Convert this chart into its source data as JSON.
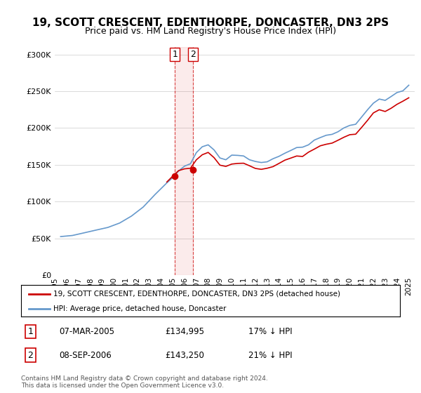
{
  "title": "19, SCOTT CRESCENT, EDENTHORPE, DONCASTER, DN3 2PS",
  "subtitle": "Price paid vs. HM Land Registry's House Price Index (HPI)",
  "legend_line1": "19, SCOTT CRESCENT, EDENTHORPE, DONCASTER, DN3 2PS (detached house)",
  "legend_line2": "HPI: Average price, detached house, Doncaster",
  "sale1_label": "1",
  "sale1_date": "07-MAR-2005",
  "sale1_price": "£134,995",
  "sale1_hpi": "17% ↓ HPI",
  "sale1_year": 2005.18,
  "sale1_value": 134995,
  "sale2_label": "2",
  "sale2_date": "08-SEP-2006",
  "sale2_price": "£143,250",
  "sale2_hpi": "21% ↓ HPI",
  "sale2_year": 2006.69,
  "sale2_value": 143250,
  "hpi_color": "#6699cc",
  "sale_color": "#cc0000",
  "vline_color": "#cc0000",
  "vline_style": "dashed",
  "background_color": "#ffffff",
  "footer": "Contains HM Land Registry data © Crown copyright and database right 2024.\nThis data is licensed under the Open Government Licence v3.0.",
  "ylim": [
    0,
    310000
  ],
  "yticks": [
    0,
    50000,
    100000,
    150000,
    200000,
    250000,
    300000
  ],
  "xlim": [
    1995,
    2025.5
  ]
}
